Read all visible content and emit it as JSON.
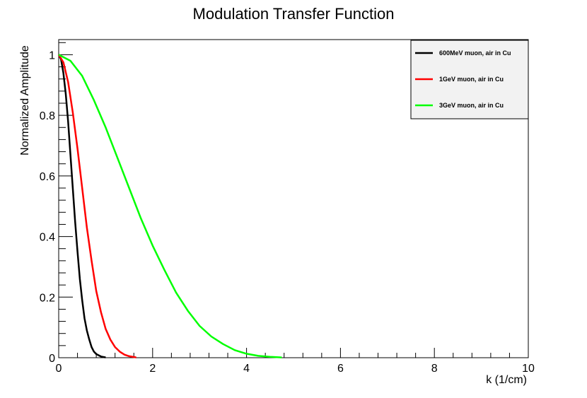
{
  "chart_data": {
    "type": "line",
    "title": "Modulation Transfer Function",
    "xlabel": "k (1/cm)",
    "ylabel": "Normalized Amplitude",
    "xlim": [
      0,
      10
    ],
    "ylim": [
      0,
      1.05
    ],
    "x_ticks": [
      "0",
      "2",
      "4",
      "6",
      "8",
      "10"
    ],
    "y_ticks": [
      "0",
      "0.2",
      "0.4",
      "0.6",
      "0.8",
      "1"
    ],
    "grid": false,
    "legend_position": "top-right",
    "legend_background": "#f2f2f2",
    "series": [
      {
        "name": "600MeV muon, air in Cu",
        "color": "#000000",
        "x": [
          0,
          0.05,
          0.1,
          0.15,
          0.2,
          0.25,
          0.3,
          0.35,
          0.4,
          0.45,
          0.5,
          0.55,
          0.6,
          0.65,
          0.7,
          0.75,
          0.8,
          0.9,
          1.0
        ],
        "y": [
          1.0,
          0.985,
          0.94,
          0.87,
          0.78,
          0.67,
          0.56,
          0.45,
          0.35,
          0.26,
          0.19,
          0.13,
          0.09,
          0.06,
          0.035,
          0.02,
          0.012,
          0.004,
          0.001
        ]
      },
      {
        "name": "1GeV muon, air in Cu",
        "color": "#ff0000",
        "x": [
          0,
          0.1,
          0.2,
          0.3,
          0.4,
          0.5,
          0.6,
          0.7,
          0.8,
          0.9,
          1.0,
          1.1,
          1.2,
          1.3,
          1.4,
          1.5,
          1.65
        ],
        "y": [
          1.0,
          0.975,
          0.91,
          0.81,
          0.69,
          0.56,
          0.43,
          0.32,
          0.22,
          0.15,
          0.095,
          0.06,
          0.035,
          0.02,
          0.01,
          0.005,
          0.001
        ]
      },
      {
        "name": "3GeV muon, air in Cu",
        "color": "#00ff00",
        "x": [
          0,
          0.25,
          0.5,
          0.75,
          1.0,
          1.25,
          1.5,
          1.75,
          2.0,
          2.25,
          2.5,
          2.75,
          3.0,
          3.25,
          3.5,
          3.75,
          4.0,
          4.25,
          4.5,
          4.75
        ],
        "y": [
          1.0,
          0.98,
          0.93,
          0.85,
          0.76,
          0.66,
          0.56,
          0.46,
          0.37,
          0.29,
          0.215,
          0.155,
          0.105,
          0.07,
          0.045,
          0.025,
          0.013,
          0.006,
          0.003,
          0.001
        ]
      }
    ]
  }
}
